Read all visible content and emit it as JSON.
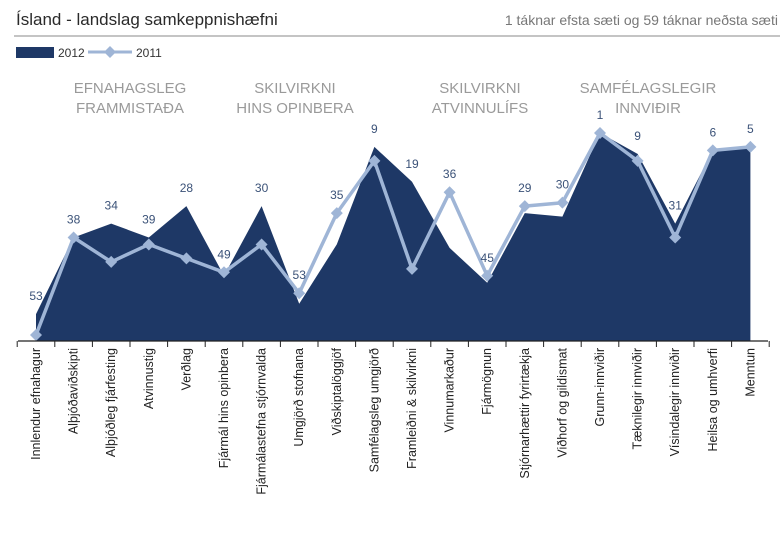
{
  "header": {
    "title": "Ísland - landslag samkeppnishæfni",
    "subtitle": "1 táknar efsta sæti og 59 táknar neðsta sæti"
  },
  "chart_data": {
    "type": "area",
    "categories": [
      "Innlendur efnahagur",
      "Alþjóðaviðskipti",
      "Alþjóðleg fjárfesting",
      "Atvinnustig",
      "Verðlag",
      "Fjármál hins opinbera",
      "Fjármálastefna stjórnvalda",
      "Umgjörð stofnana",
      "Viðskiptalöggjöf",
      "Samfélagsleg umgjörð",
      "Framleiðni & skilvirkni",
      "Vinnumarkaður",
      "Fjármögnun",
      "Stjórnarhættir fyrirtækja",
      "Viðhorf og gildismat",
      "Grunn-innviðir",
      "Tæknilegir innviðir",
      "Vísindalegir innviðir",
      "Heilsa og umhverfi",
      "Menntun"
    ],
    "series": [
      {
        "name": "2012",
        "type": "area",
        "color": "#1e3866",
        "values": [
          53,
          31,
          27,
          31,
          22,
          42,
          22,
          50,
          33,
          5,
          15,
          34,
          44,
          24,
          25,
          1,
          7,
          27,
          6,
          5
        ]
      },
      {
        "name": "2011",
        "type": "line",
        "color": "#9fb5d6",
        "values": [
          59,
          31,
          38,
          33,
          37,
          41,
          33,
          47,
          24,
          9,
          40,
          18,
          42,
          22,
          21,
          1,
          9,
          31,
          6,
          5
        ]
      }
    ],
    "data_labels": [
      "53",
      "38",
      "34",
      "39",
      "28",
      "49",
      "30",
      "53",
      "35",
      "9",
      "19",
      "36",
      "45",
      "29",
      "30",
      "1",
      "9",
      "31",
      "6",
      "5"
    ],
    "group_labels": [
      {
        "lines": [
          "EFNAHAGSLEG",
          "FRAMMISTAÐA"
        ]
      },
      {
        "lines": [
          "SKILVIRKNI",
          "HINS OPINBERA"
        ]
      },
      {
        "lines": [
          "SKILVIRKNI",
          "ATVINNULÍFS"
        ]
      },
      {
        "lines": [
          "SAMFÉLAGSLEGIR",
          "INNVIÐIR"
        ]
      }
    ],
    "y_axis": {
      "reversed": true,
      "min": 0,
      "max": 60,
      "visible": false
    },
    "legend": {
      "placement": "top-left"
    },
    "grid": false
  }
}
